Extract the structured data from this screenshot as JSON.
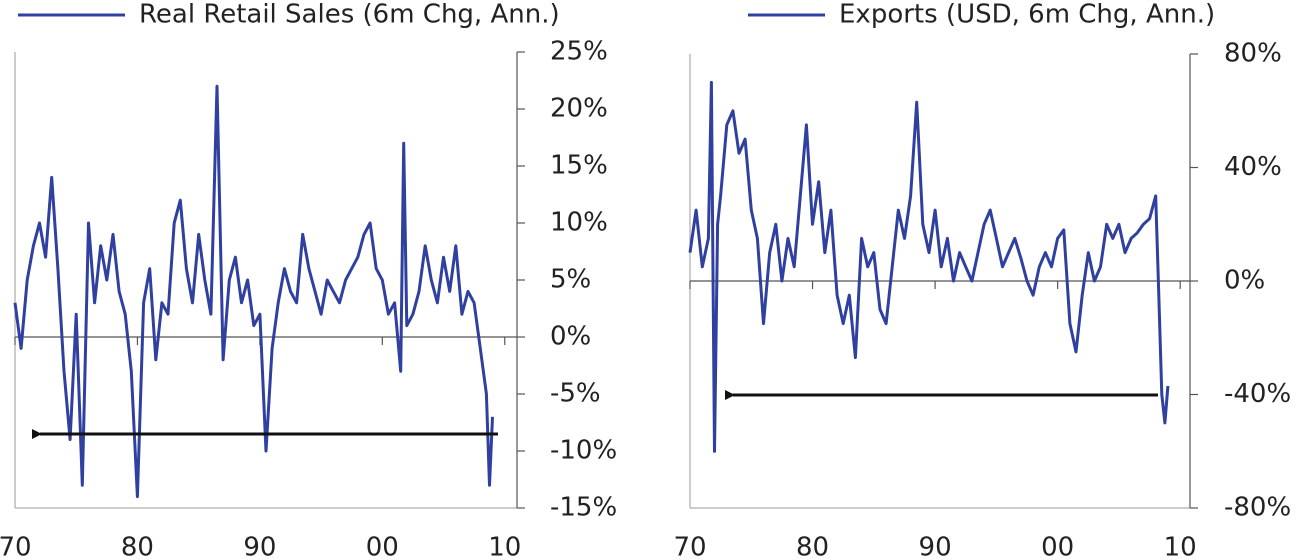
{
  "chart_data": [
    {
      "type": "line",
      "x": [
        1970,
        1970.5,
        1971,
        1971.5,
        1972,
        1972.5,
        1973,
        1973.5,
        1974,
        1974.5,
        1975,
        1975.5,
        1976,
        1976.5,
        1977,
        1977.5,
        1978,
        1978.5,
        1979,
        1979.5,
        1980,
        1980.5,
        1981,
        1981.5,
        1982,
        1982.5,
        1983,
        1983.5,
        1984,
        1984.5,
        1985,
        1985.5,
        1986,
        1986.5,
        1987,
        1987.5,
        1988,
        1988.5,
        1989,
        1989.5,
        1990,
        1990.5,
        1991,
        1991.5,
        1992,
        1992.5,
        1993,
        1993.5,
        1994,
        1994.5,
        1995,
        1995.5,
        1996,
        1996.5,
        1997,
        1997.5,
        1998,
        1998.5,
        1999,
        1999.5,
        2000,
        2000.5,
        2001,
        2001.5,
        2001.75,
        2002,
        2002.5,
        2003,
        2003.5,
        2004,
        2004.5,
        2005,
        2005.5,
        2006,
        2006.5,
        2007,
        2007.5,
        2008,
        2008.5,
        2008.75,
        2009
      ],
      "series": [
        {
          "name": "Real Retail Sales (6m Chg, Ann.)",
          "color": "#2f40a0",
          "values": [
            3,
            -1,
            5,
            8,
            10,
            7,
            14,
            6,
            -3,
            -9,
            2,
            -13,
            10,
            3,
            8,
            5,
            9,
            4,
            2,
            -3,
            -14,
            3,
            6,
            -2,
            3,
            2,
            10,
            12,
            6,
            3,
            9,
            5,
            2,
            22,
            -2,
            5,
            7,
            3,
            5,
            1,
            2,
            -10,
            -1,
            3,
            6,
            4,
            3,
            9,
            6,
            4,
            2,
            5,
            4,
            3,
            5,
            6,
            7,
            9,
            10,
            6,
            5,
            2,
            3,
            -3,
            17,
            1,
            2,
            4,
            8,
            5,
            3,
            7,
            4,
            8,
            2,
            4,
            3,
            -1,
            -5,
            -13,
            -7
          ]
        }
      ],
      "xlim": [
        1970,
        2011
      ],
      "xticks": [
        {
          "value": 1970,
          "label": "70"
        },
        {
          "value": 1980,
          "label": "80"
        },
        {
          "value": 1990,
          "label": "90"
        },
        {
          "value": 2000,
          "label": "00"
        },
        {
          "value": 2010,
          "label": "10"
        }
      ],
      "ylim": [
        -15,
        25
      ],
      "yticks": [
        {
          "value": 25,
          "label": "25%"
        },
        {
          "value": 20,
          "label": "20%"
        },
        {
          "value": 15,
          "label": "15%"
        },
        {
          "value": 10,
          "label": "10%"
        },
        {
          "value": 5,
          "label": "5%"
        },
        {
          "value": 0,
          "label": "0%"
        },
        {
          "value": -5,
          "label": "-5%"
        },
        {
          "value": -10,
          "label": "-10%"
        },
        {
          "value": -15,
          "label": "-15%"
        }
      ],
      "grid": false
    },
    {
      "type": "line",
      "x": [
        1970,
        1970.5,
        1971,
        1971.5,
        1971.75,
        1972,
        1972.25,
        1972.5,
        1973,
        1973.5,
        1974,
        1974.5,
        1975,
        1975.5,
        1976,
        1976.5,
        1977,
        1977.5,
        1978,
        1978.5,
        1979,
        1979.5,
        1980,
        1980.5,
        1981,
        1981.5,
        1982,
        1982.5,
        1983,
        1983.5,
        1984,
        1984.5,
        1985,
        1985.5,
        1986,
        1986.5,
        1987,
        1987.5,
        1988,
        1988.5,
        1989,
        1989.5,
        1990,
        1990.5,
        1991,
        1991.5,
        1992,
        1992.5,
        1993,
        1993.5,
        1994,
        1994.5,
        1995,
        1995.5,
        1996,
        1996.5,
        1997,
        1997.5,
        1998,
        1998.5,
        1999,
        1999.5,
        2000,
        2000.5,
        2001,
        2001.5,
        2002,
        2002.5,
        2003,
        2003.5,
        2004,
        2004.5,
        2005,
        2005.5,
        2006,
        2006.5,
        2007,
        2007.5,
        2008,
        2008.25,
        2008.5,
        2008.75,
        2009
      ],
      "series": [
        {
          "name": "Exports (USD, 6m Chg, Ann.)",
          "color": "#2f40a0",
          "values": [
            10,
            25,
            5,
            15,
            70,
            -60,
            20,
            30,
            55,
            60,
            45,
            50,
            25,
            15,
            -15,
            10,
            20,
            0,
            15,
            5,
            30,
            55,
            20,
            35,
            10,
            25,
            -5,
            -15,
            -5,
            -27,
            15,
            5,
            10,
            -10,
            -15,
            5,
            25,
            15,
            30,
            63,
            20,
            10,
            25,
            5,
            15,
            0,
            10,
            5,
            0,
            10,
            20,
            25,
            15,
            5,
            10,
            15,
            8,
            0,
            -5,
            5,
            10,
            5,
            15,
            18,
            -15,
            -25,
            -5,
            10,
            0,
            5,
            20,
            15,
            20,
            10,
            15,
            17,
            20,
            22,
            30,
            -5,
            -40,
            -50,
            -37
          ]
        }
      ],
      "xlim": [
        1970,
        2010.8
      ],
      "xticks": [
        {
          "value": 1970,
          "label": "70"
        },
        {
          "value": 1980,
          "label": "80"
        },
        {
          "value": 1990,
          "label": "90"
        },
        {
          "value": 2000,
          "label": "00"
        },
        {
          "value": 2010,
          "label": "10"
        }
      ],
      "ylim": [
        -80,
        80
      ],
      "yticks": [
        {
          "value": 80,
          "label": "80%"
        },
        {
          "value": 40,
          "label": "40%"
        },
        {
          "value": 0,
          "label": "0%"
        },
        {
          "value": -40,
          "label": "-40%"
        },
        {
          "value": -80,
          "label": "-80%"
        }
      ],
      "grid": false
    }
  ]
}
